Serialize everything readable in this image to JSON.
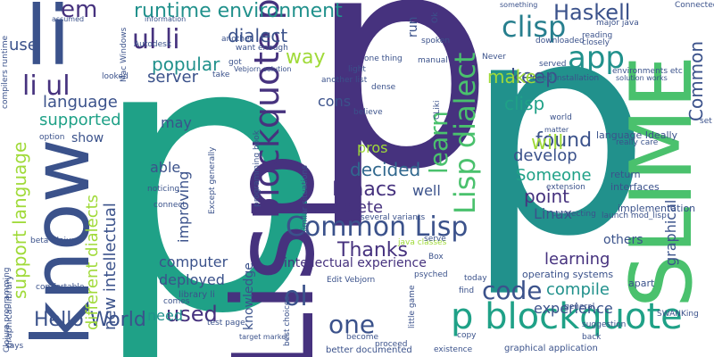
{
  "word_cloud": {
    "words": [
      {
        "text": "p",
        "color": "#1fa187"
      },
      {
        "text": "p",
        "color": "#46327e"
      },
      {
        "text": "p",
        "color": "#21918c"
      },
      {
        "text": "Lisp",
        "color": "#46327e"
      },
      {
        "text": "SLIME",
        "color": "#6ece58"
      },
      {
        "text": "know",
        "color": "#3b528b"
      },
      {
        "text": "li",
        "color": "#3b528b"
      },
      {
        "text": "p blockquote",
        "color": "#1fa187"
      },
      {
        "text": "blockquote p",
        "color": "#46327e"
      },
      {
        "text": "Lisp dialect",
        "color": "#4ac16d"
      },
      {
        "text": "Common Lisp",
        "color": "#3b528b"
      },
      {
        "text": "runtime environment",
        "color": "#21918c"
      },
      {
        "text": "clisp",
        "color": "#277f8e"
      },
      {
        "text": "app",
        "color": "#21918c"
      },
      {
        "text": "Haskell",
        "color": "#3b528b"
      },
      {
        "text": "ul li",
        "color": "#46327e"
      },
      {
        "text": "li ul",
        "color": "#46327e"
      },
      {
        "text": "em",
        "color": "#46327e"
      },
      {
        "text": "dialect",
        "color": "#3b528b"
      },
      {
        "text": "found",
        "color": "#3b528b"
      },
      {
        "text": "keep",
        "color": "#3b528b"
      },
      {
        "text": "learn",
        "color": "#4ac16d"
      },
      {
        "text": "make",
        "color": "#a0da39"
      },
      {
        "text": "Common",
        "color": "#3b528b"
      },
      {
        "text": "way",
        "color": "#a0da39"
      },
      {
        "text": "popular",
        "color": "#21918c"
      },
      {
        "text": "server",
        "color": "#3b528b"
      },
      {
        "text": "language",
        "color": "#3b528b"
      },
      {
        "text": "supported",
        "color": "#1fa187"
      },
      {
        "text": "support language",
        "color": "#a0da39"
      },
      {
        "text": "cons",
        "color": "#3b528b"
      },
      {
        "text": "clisp",
        "color": "#1fa187"
      },
      {
        "text": "will",
        "color": "#a0da39"
      },
      {
        "text": "develop",
        "color": "#3b528b"
      },
      {
        "text": "decided",
        "color": "#31688e"
      },
      {
        "text": "Emacs",
        "color": "#46327e"
      },
      {
        "text": "well",
        "color": "#3b528b"
      },
      {
        "text": "Someone",
        "color": "#1fa187"
      },
      {
        "text": "point",
        "color": "#46327e"
      },
      {
        "text": "Linux",
        "color": "#3b528b"
      },
      {
        "text": "complete",
        "color": "#46327e"
      },
      {
        "text": "Thanks",
        "color": "#46327e"
      },
      {
        "text": "code",
        "color": "#3b528b"
      },
      {
        "text": "compile",
        "color": "#21918c"
      },
      {
        "text": "experience",
        "color": "#3b528b"
      },
      {
        "text": "learning",
        "color": "#46327e"
      },
      {
        "text": "others",
        "color": "#3b528b"
      },
      {
        "text": "graphical",
        "color": "#3b528b"
      },
      {
        "text": "intellectual experience",
        "color": "#46327e"
      },
      {
        "text": "Hello World",
        "color": "#3b528b"
      },
      {
        "text": "used",
        "color": "#46327e"
      },
      {
        "text": "one",
        "color": "#3b528b"
      },
      {
        "text": "ol",
        "color": "#3b528b"
      },
      {
        "text": "need",
        "color": "#21918c"
      },
      {
        "text": "deployed",
        "color": "#3b528b"
      },
      {
        "text": "computer",
        "color": "#3b528b"
      },
      {
        "text": "knowledge",
        "color": "#3b528b"
      },
      {
        "text": "new intellectual",
        "color": "#3b528b"
      },
      {
        "text": "different dialects",
        "color": "#a0da39"
      },
      {
        "text": "improving",
        "color": "#3b528b"
      },
      {
        "text": "able",
        "color": "#3b528b"
      },
      {
        "text": "may",
        "color": "#3b528b"
      },
      {
        "text": "show",
        "color": "#3b528b"
      },
      {
        "text": "use",
        "color": "#3b528b"
      },
      {
        "text": "pros",
        "color": "#a0da39"
      },
      {
        "text": "run",
        "color": "#3b528b"
      },
      {
        "text": "Ok",
        "color": "#3b528b"
      },
      {
        "text": "graphical library",
        "color": "#3b528b"
      },
      {
        "text": "graphical application",
        "color": "#3b528b"
      },
      {
        "text": "library li",
        "color": "#3b528b"
      },
      {
        "text": "operating systems",
        "color": "#3b528b"
      },
      {
        "text": "Clojure programming",
        "color": "#3b528b"
      },
      {
        "text": "better documented",
        "color": "#3b528b"
      },
      {
        "text": "best choices",
        "color": "#3b528b"
      },
      {
        "text": "language Ideally",
        "color": "#3b528b"
      },
      {
        "text": "implementation",
        "color": "#3b528b"
      },
      {
        "text": "interfaces",
        "color": "#3b528b"
      },
      {
        "text": "return",
        "color": "#3b528b"
      },
      {
        "text": "similar situations",
        "color": "#3b528b"
      },
      {
        "text": "several variants",
        "color": "#3b528b"
      },
      {
        "text": "java classes",
        "color": "#a0da39"
      },
      {
        "text": "major java",
        "color": "#3b528b"
      },
      {
        "text": "Mac Windows",
        "color": "#3b528b"
      },
      {
        "text": "Autodesk",
        "color": "#3b528b"
      },
      {
        "text": "information",
        "color": "#3b528b"
      },
      {
        "text": "something",
        "color": "#3b528b"
      },
      {
        "text": "compilers runtime",
        "color": "#3b528b"
      },
      {
        "text": "assumed",
        "color": "#3b528b"
      },
      {
        "text": "another",
        "color": "#3b528b"
      },
      {
        "text": "spoken",
        "color": "#3b528b"
      },
      {
        "text": "downloaded",
        "color": "#3b528b"
      },
      {
        "text": "reading",
        "color": "#3b528b"
      },
      {
        "text": "closely",
        "color": "#3b528b"
      },
      {
        "text": "light",
        "color": "#3b528b"
      },
      {
        "text": "another list",
        "color": "#3b528b"
      },
      {
        "text": "dense",
        "color": "#3b528b"
      },
      {
        "text": "one thing",
        "color": "#3b528b"
      },
      {
        "text": "want enough",
        "color": "#3b528b"
      },
      {
        "text": "Vebjorn solution",
        "color": "#3b528b"
      },
      {
        "text": "got",
        "color": "#3b528b"
      },
      {
        "text": "take",
        "color": "#3b528b"
      },
      {
        "text": "manual",
        "color": "#3b528b"
      },
      {
        "text": "Never",
        "color": "#3b528b"
      },
      {
        "text": "served",
        "color": "#3b528b"
      },
      {
        "text": "looked",
        "color": "#3b528b"
      },
      {
        "text": "believe",
        "color": "#3b528b"
      },
      {
        "text": "need installation",
        "color": "#3b528b"
      },
      {
        "text": "environments etc",
        "color": "#3b528b"
      },
      {
        "text": "solution works",
        "color": "#3b528b"
      },
      {
        "text": "world",
        "color": "#3b528b"
      },
      {
        "text": "matter",
        "color": "#3b528b"
      },
      {
        "text": "really care",
        "color": "#3b528b"
      },
      {
        "text": "set",
        "color": "#3b528b"
      },
      {
        "text": "extension",
        "color": "#3b528b"
      },
      {
        "text": "connecting",
        "color": "#3b528b"
      },
      {
        "text": "launch mod_lisp",
        "color": "#3b528b"
      },
      {
        "text": "connect",
        "color": "#3b528b"
      },
      {
        "text": "noticing",
        "color": "#3b528b"
      },
      {
        "text": "Except generally",
        "color": "#3b528b"
      },
      {
        "text": "programming book",
        "color": "#3b528b"
      },
      {
        "text": "beta Clojure",
        "color": "#3b528b"
      },
      {
        "text": "option",
        "color": "#3b528b"
      },
      {
        "text": "comfortable",
        "color": "#3b528b"
      },
      {
        "text": "comes",
        "color": "#3b528b"
      },
      {
        "text": "test page",
        "color": "#3b528b"
      },
      {
        "text": "target market",
        "color": "#3b528b"
      },
      {
        "text": "says",
        "color": "#3b528b"
      },
      {
        "text": "become",
        "color": "#3b528b"
      },
      {
        "text": "proceed",
        "color": "#3b528b"
      },
      {
        "text": "existence",
        "color": "#3b528b"
      },
      {
        "text": "copy",
        "color": "#3b528b"
      },
      {
        "text": "general",
        "color": "#3b528b"
      },
      {
        "text": "today",
        "color": "#3b528b"
      },
      {
        "text": "find",
        "color": "#3b528b"
      },
      {
        "text": "psyched",
        "color": "#3b528b"
      },
      {
        "text": "serve",
        "color": "#3b528b"
      },
      {
        "text": "Box",
        "color": "#3b528b"
      },
      {
        "text": "Edit Vebjorn",
        "color": "#3b528b"
      },
      {
        "text": "little game",
        "color": "#3b528b"
      },
      {
        "text": "apart",
        "color": "#3b528b"
      },
      {
        "text": "SWANKing",
        "color": "#3b528b"
      },
      {
        "text": "suggestion",
        "color": "#3b528b"
      },
      {
        "text": "back",
        "color": "#3b528b"
      },
      {
        "text": "Connected",
        "color": "#3b528b"
      },
      {
        "text": "CLiki",
        "color": "#3b528b"
      }
    ]
  }
}
